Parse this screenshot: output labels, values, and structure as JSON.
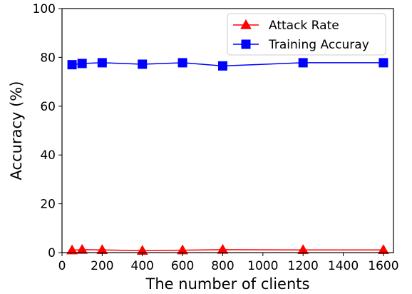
{
  "chart_data": {
    "type": "line",
    "title": "",
    "xlabel": "The number of clients",
    "ylabel": "Accuracy (%)",
    "xlim": [
      0,
      1650
    ],
    "ylim": [
      0,
      100
    ],
    "xticks": [
      0,
      200,
      400,
      600,
      800,
      1000,
      1200,
      1400,
      1600
    ],
    "yticks": [
      0,
      20,
      40,
      60,
      80,
      100
    ],
    "x": [
      50,
      100,
      200,
      400,
      600,
      800,
      1200,
      1600
    ],
    "series": [
      {
        "name": "Attack Rate",
        "color": "#ff0000",
        "marker": "triangle",
        "values": [
          1.0,
          1.2,
          1.1,
          0.8,
          1.0,
          1.2,
          1.1,
          1.1
        ]
      },
      {
        "name": "Training Accuray",
        "color": "#0000ff",
        "marker": "square",
        "values": [
          77.0,
          77.5,
          77.8,
          77.2,
          77.8,
          76.5,
          77.8,
          77.8
        ]
      }
    ],
    "grid": false,
    "legend_position": "top-right"
  }
}
